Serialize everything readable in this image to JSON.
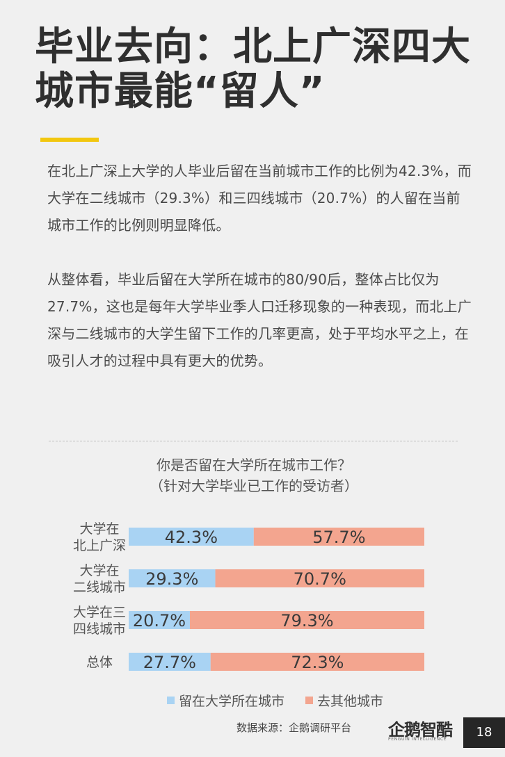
{
  "page": {
    "title": "毕业去向：北上广深四大城市最能“留人”",
    "paragraph_1": "在北上广深上大学的人毕业后留在当前城市工作的比例为42.3%，而大学在二线城市（29.3%）和三四线城市（20.7%）的人留在当前城市工作的比例则明显降低。",
    "paragraph_2": "从整体看，毕业后留在大学所在城市的80/90后，整体占比仅为27.7%，这也是每年大学毕业季人口迁移现象的一种表现，而北上广深与二线城市的大学生留下工作的几率更高，处于平均水平之上，在吸引人才的过程中具有更大的优势。",
    "source": "数据来源：企鹅调研平台",
    "logo": "企鹅智酷",
    "logo_sub": "PENGUIN INTELLIGENCE",
    "page_number": "18",
    "accent_color": "#f2c70f"
  },
  "chart_data": {
    "type": "bar",
    "orientation": "horizontal",
    "stacked": true,
    "title": "你是否留在大学所在城市工作？",
    "subtitle": "（针对大学毕业已工作的受访者）",
    "categories": [
      [
        "大学在",
        "北上广深"
      ],
      [
        "大学在",
        "二线城市"
      ],
      [
        "大学在三",
        "四线城市"
      ],
      [
        "总体"
      ]
    ],
    "series": [
      {
        "name": "留在大学所在城市",
        "color": "#a9d3f3",
        "values": [
          42.3,
          29.3,
          20.7,
          27.7
        ],
        "labels": [
          "42.3%",
          "29.3%",
          "20.7%",
          "27.7%"
        ]
      },
      {
        "name": "去其他城市",
        "color": "#f3a58f",
        "values": [
          57.7,
          70.7,
          79.3,
          72.3
        ],
        "labels": [
          "57.7%",
          "70.7%",
          "79.3%",
          "72.3%"
        ]
      }
    ],
    "xlim": [
      0,
      100
    ],
    "grid": false,
    "legend": "bottom"
  }
}
